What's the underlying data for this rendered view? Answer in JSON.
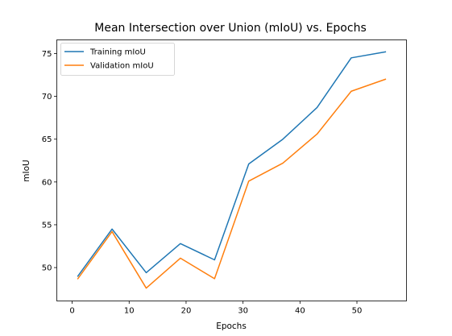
{
  "chart_data": {
    "type": "line",
    "title": "Mean Intersection over Union (mIoU) vs. Epochs",
    "xlabel": "Epochs",
    "ylabel": "mIoU",
    "xlim": [
      -2.7,
      58.7
    ],
    "ylim": [
      46.1,
      76.6
    ],
    "xticks": [
      0,
      10,
      20,
      30,
      40,
      50
    ],
    "yticks": [
      50,
      55,
      60,
      65,
      70,
      75
    ],
    "grid": false,
    "legend": "upper-left",
    "x": [
      1,
      7,
      13,
      19,
      25,
      31,
      37,
      43,
      49,
      55
    ],
    "series": [
      {
        "name": "Training mIoU",
        "color": "#1f77b4",
        "values": [
          49.0,
          54.5,
          49.4,
          52.8,
          50.9,
          62.1,
          65.0,
          68.7,
          74.5,
          75.2
        ]
      },
      {
        "name": "Validation mIoU",
        "color": "#ff7f0e",
        "values": [
          48.7,
          54.2,
          47.6,
          51.1,
          48.7,
          60.1,
          62.2,
          65.6,
          70.6,
          72.0
        ]
      }
    ]
  }
}
